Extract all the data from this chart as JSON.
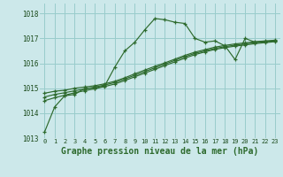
{
  "title": "Graphe pression niveau de la mer (hPa)",
  "bg_color": "#cce8ea",
  "grid_color": "#99cccc",
  "line_color": "#2d6a2d",
  "xlim": [
    0,
    23
  ],
  "ylim": [
    1013.0,
    1018.4
  ],
  "yticks": [
    1013,
    1014,
    1015,
    1016,
    1017,
    1018
  ],
  "xticks": [
    0,
    1,
    2,
    3,
    4,
    5,
    6,
    7,
    8,
    9,
    10,
    11,
    12,
    13,
    14,
    15,
    16,
    17,
    18,
    19,
    20,
    21,
    22,
    23
  ],
  "series": [
    [
      1013.25,
      1014.25,
      1014.7,
      1014.75,
      1015.0,
      1015.0,
      1015.1,
      1015.85,
      1016.5,
      1016.85,
      1017.35,
      1017.8,
      1017.75,
      1017.65,
      1017.6,
      1017.0,
      1016.85,
      1016.9,
      1016.7,
      1016.15,
      1017.0,
      1016.85,
      1016.88,
      1016.9
    ],
    [
      1014.8,
      1014.88,
      1014.92,
      1015.0,
      1015.05,
      1015.1,
      1015.18,
      1015.28,
      1015.42,
      1015.58,
      1015.73,
      1015.88,
      1016.02,
      1016.17,
      1016.32,
      1016.45,
      1016.55,
      1016.65,
      1016.72,
      1016.78,
      1016.82,
      1016.87,
      1016.9,
      1016.93
    ],
    [
      1014.65,
      1014.75,
      1014.82,
      1014.9,
      1014.97,
      1015.05,
      1015.13,
      1015.23,
      1015.37,
      1015.52,
      1015.67,
      1015.82,
      1015.97,
      1016.12,
      1016.27,
      1016.4,
      1016.5,
      1016.6,
      1016.67,
      1016.73,
      1016.78,
      1016.83,
      1016.87,
      1016.9
    ],
    [
      1014.5,
      1014.62,
      1014.72,
      1014.82,
      1014.9,
      1014.98,
      1015.07,
      1015.17,
      1015.31,
      1015.46,
      1015.61,
      1015.76,
      1015.91,
      1016.06,
      1016.21,
      1016.35,
      1016.46,
      1016.56,
      1016.63,
      1016.69,
      1016.74,
      1016.79,
      1016.83,
      1016.87
    ]
  ]
}
